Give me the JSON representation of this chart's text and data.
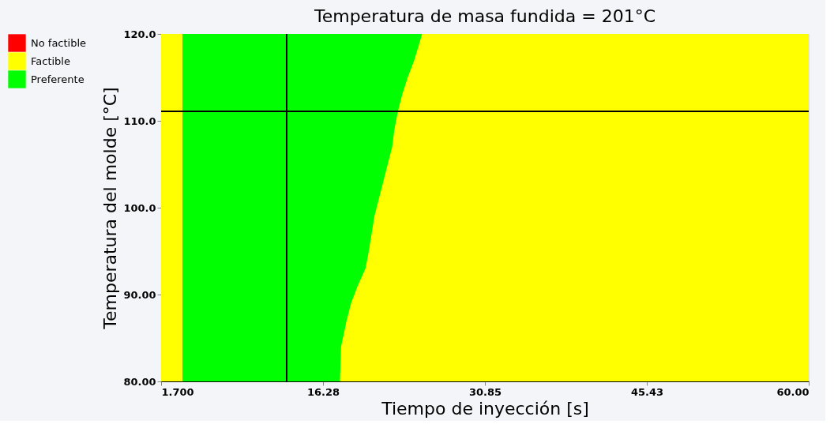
{
  "chart_data": {
    "type": "area",
    "title": "Temperatura de masa fundida = 201°C",
    "xlabel": "Tiempo de inyección [s]",
    "ylabel": "Temperatura del molde [°C]",
    "series": [
      {
        "name": "No factible",
        "color": "#ff0000"
      },
      {
        "name": "Factible",
        "color": "#ffff00",
        "x": [
          1.7,
          3.6,
          3.6,
          17.8,
          17.9,
          18.4,
          18.8,
          19.4,
          20.1,
          20.4,
          20.9,
          21.3,
          21.7,
          22.1,
          22.5,
          22.7,
          23.0,
          23.4,
          23.9,
          24.5,
          25.2,
          60
        ],
        "values": [
          120,
          120,
          80,
          80,
          84,
          87,
          89,
          91,
          93,
          95,
          99,
          101,
          103,
          105,
          107,
          109,
          111,
          113,
          115,
          117,
          120,
          120
        ]
      },
      {
        "name": "Preferente",
        "color": "#00ff00",
        "x": [
          3.6,
          25.2
        ],
        "values": [
          120,
          120
        ]
      }
    ],
    "xlim": [
      1.7,
      60
    ],
    "xticks": [
      {
        "value": 1.7,
        "label": "1.700"
      },
      16.28,
      30.85,
      45.43,
      {
        "value": 60,
        "label": "60.00"
      }
    ],
    "ylim": [
      80,
      120
    ],
    "yticks": [
      {
        "value": 80,
        "label": "80.00"
      },
      {
        "value": 90,
        "label": "90.00"
      },
      {
        "value": 100,
        "label": "100.0"
      },
      {
        "value": 110,
        "label": "110.0"
      },
      {
        "value": 120,
        "label": "120.0"
      }
    ],
    "ref_lines": [
      {
        "axis": "x",
        "value": 13.0,
        "color": "#000000"
      },
      {
        "axis": "y",
        "value": 111.1,
        "color": "#000000"
      }
    ],
    "legend": "left"
  }
}
